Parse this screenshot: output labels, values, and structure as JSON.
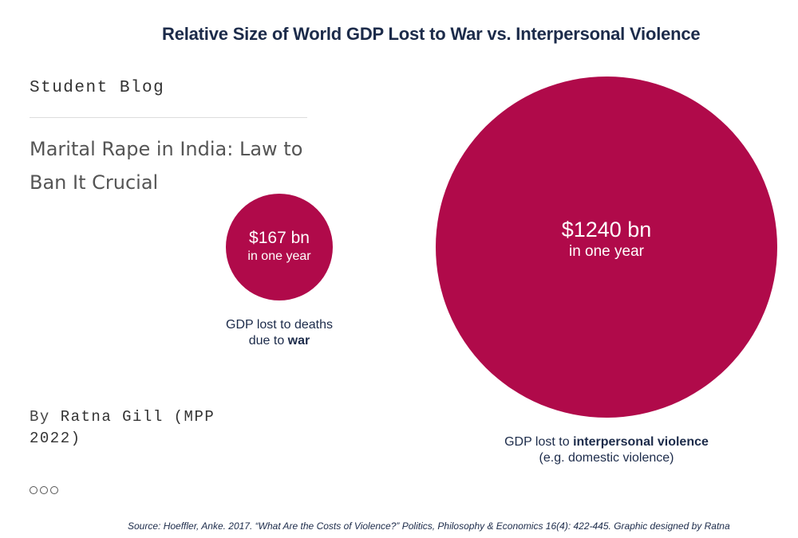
{
  "chart_data": {
    "type": "bubble",
    "title": "Relative Size of World GDP Lost to War vs. Interpersonal Violence",
    "unit": "bn",
    "color": "#b00a4a",
    "series": [
      {
        "amount_label": "$167 bn",
        "period_label": "in one year",
        "value": 167,
        "caption_line1_prefix": "GDP lost to deaths",
        "caption_line2_prefix": "due to ",
        "caption_line2_bold": "war",
        "caption_line3": ""
      },
      {
        "amount_label": "$1240 bn",
        "period_label": "in one year",
        "value": 1240,
        "caption_line1_prefix": "GDP lost to ",
        "caption_line1_bold": "interpersonal violence",
        "caption_line2": "(e.g. domestic violence)"
      }
    ],
    "source": "Source: Hoeffler, Anke. 2017. “What Are the Costs of Violence?” Politics, Philosophy & Economics 16(4): 422-445. Graphic designed by Ratna"
  },
  "blog": {
    "kicker": "Student Blog",
    "title": "Marital Rape in India: Law to Ban It Crucial",
    "byline_prefix": "By",
    "byline_author": "Ratna Gill (MPP 2022)",
    "carousel_dots": 3
  }
}
